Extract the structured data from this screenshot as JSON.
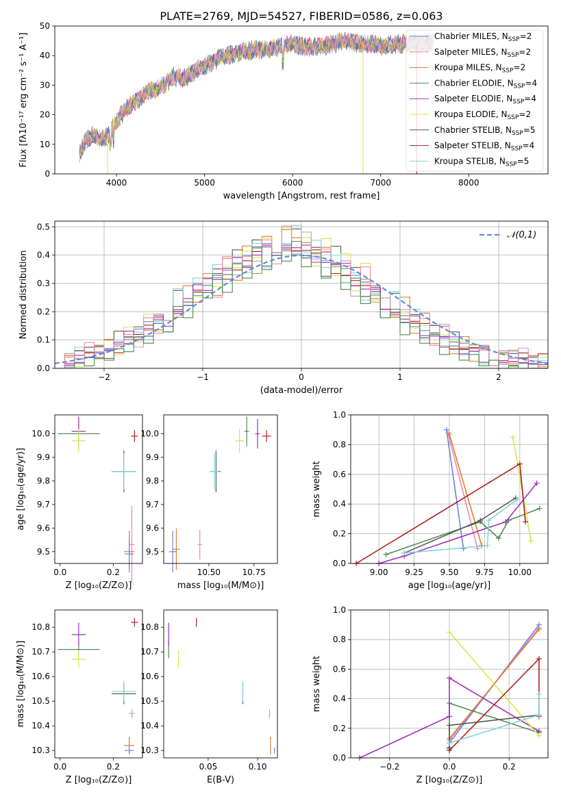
{
  "figure": {
    "title": "PLATE=2769, MJD=54527, FIBERID=0586, z=0.063"
  },
  "legend_entries": [
    {
      "label": "Chabrier MILES, N",
      "sub": "SSP",
      "tail": "=2",
      "color": "#6d7fe0"
    },
    {
      "label": "Salpeter MILES, N",
      "sub": "SSP",
      "tail": "=2",
      "color": "#e889b6"
    },
    {
      "label": "Kroupa MILES, N",
      "sub": "SSP",
      "tail": "=2",
      "color": "#e07b2a"
    },
    {
      "label": "Chabrier ELODIE, N",
      "sub": "SSP",
      "tail": "=4",
      "color": "#4d8a4d"
    },
    {
      "label": "Salpeter ELODIE, N",
      "sub": "SSP",
      "tail": "=4",
      "color": "#9c2fb5"
    },
    {
      "label": "Kroupa ELODIE, N",
      "sub": "SSP",
      "tail": "=2",
      "color": "#d4e84a"
    },
    {
      "label": "Chabrier STELIB, N",
      "sub": "SSP",
      "tail": "=5",
      "color": "#555555"
    },
    {
      "label": "Salpeter STELIB, N",
      "sub": "SSP",
      "tail": "=4",
      "color": "#b01c1c"
    },
    {
      "label": "Kroupa STELIB, N",
      "sub": "SSP",
      "tail": "=5",
      "color": "#7fd6e0"
    }
  ],
  "chart_data": [
    {
      "type": "line",
      "title": "PLATE=2769, MJD=54527, FIBERID=0586, z=0.063",
      "xlabel": "wavelength [Angstrom, rest frame]",
      "ylabel": "Flux [fλ10⁻¹⁷ erg cm⁻² s⁻¹ A⁻¹]",
      "xlim": [
        3300,
        8900
      ],
      "ylim": [
        0,
        50
      ],
      "xticks": [
        4000,
        5000,
        6000,
        7000,
        8000
      ],
      "yticks": [
        0,
        10,
        20,
        30,
        40,
        50
      ],
      "x": [
        3580,
        3650,
        3720,
        3800,
        3870,
        3950,
        4050,
        4150,
        4250,
        4350,
        4450,
        4550,
        4650,
        4750,
        4850,
        4950,
        5050,
        5150,
        5250,
        5400,
        5550,
        5700,
        5850,
        6000,
        6150,
        6300,
        6450,
        6600,
        6750,
        6900,
        7050,
        7200,
        7350,
        7500,
        7600
      ],
      "values": [
        7,
        11,
        13,
        12,
        12,
        15,
        20,
        23,
        25,
        28,
        29,
        30,
        33,
        32,
        34,
        36,
        37,
        39,
        40,
        41,
        42,
        42,
        43,
        44,
        43,
        43,
        44,
        45,
        44,
        44,
        43,
        44,
        44,
        44,
        45
      ],
      "legend_placement": "right"
    },
    {
      "type": "bar",
      "xlabel": "(data-model)/error",
      "ylabel": "Normed distribution",
      "xlim": [
        -2.5,
        2.5
      ],
      "ylim": [
        0,
        0.52
      ],
      "xticks": [
        -2,
        -1,
        0,
        1,
        2
      ],
      "yticks": [
        0.0,
        0.1,
        0.2,
        0.3,
        0.4,
        0.5
      ],
      "grid": true,
      "legend_placement": "top-right",
      "reference_curve": "𝒩(0,1)",
      "bin_edges": [
        -2.5,
        -2.4,
        -2.3,
        -2.2,
        -2.1,
        -2.0,
        -1.9,
        -1.8,
        -1.7,
        -1.6,
        -1.5,
        -1.4,
        -1.3,
        -1.2,
        -1.1,
        -1.0,
        -0.9,
        -0.8,
        -0.7,
        -0.6,
        -0.5,
        -0.4,
        -0.3,
        -0.2,
        -0.1,
        0.0,
        0.1,
        0.2,
        0.3,
        0.4,
        0.5,
        0.6,
        0.7,
        0.8,
        0.9,
        1.0,
        1.1,
        1.2,
        1.3,
        1.4,
        1.5,
        1.6,
        1.7,
        1.8,
        1.9,
        2.0,
        2.1,
        2.2,
        2.3,
        2.4,
        2.5
      ],
      "series": [
        {
          "values": [
            0.03,
            0.03,
            0.04,
            0.05,
            0.06,
            0.07,
            0.08,
            0.1,
            0.12,
            0.14,
            0.16,
            0.18,
            0.22,
            0.24,
            0.27,
            0.3,
            0.32,
            0.34,
            0.36,
            0.38,
            0.4,
            0.41,
            0.43,
            0.44,
            0.42,
            0.41,
            0.4,
            0.38,
            0.36,
            0.34,
            0.31,
            0.28,
            0.26,
            0.24,
            0.21,
            0.18,
            0.16,
            0.14,
            0.12,
            0.1,
            0.08,
            0.07,
            0.06,
            0.05,
            0.04,
            0.04,
            0.03,
            0.03,
            0.02,
            0.02
          ]
        },
        {
          "values": [
            0.02,
            0.04,
            0.03,
            0.06,
            0.05,
            0.08,
            0.06,
            0.12,
            0.1,
            0.16,
            0.13,
            0.2,
            0.18,
            0.26,
            0.24,
            0.31,
            0.27,
            0.37,
            0.33,
            0.42,
            0.36,
            0.46,
            0.4,
            0.49,
            0.43,
            0.45,
            0.38,
            0.44,
            0.34,
            0.38,
            0.28,
            0.34,
            0.24,
            0.28,
            0.18,
            0.22,
            0.13,
            0.17,
            0.1,
            0.13,
            0.07,
            0.1,
            0.05,
            0.07,
            0.04,
            0.05,
            0.03,
            0.04,
            0.02,
            0.02
          ]
        },
        {
          "values": [
            0.03,
            0.02,
            0.05,
            0.04,
            0.07,
            0.06,
            0.1,
            0.09,
            0.14,
            0.12,
            0.19,
            0.16,
            0.25,
            0.21,
            0.3,
            0.28,
            0.36,
            0.3,
            0.4,
            0.35,
            0.46,
            0.38,
            0.44,
            0.41,
            0.48,
            0.39,
            0.44,
            0.35,
            0.4,
            0.31,
            0.35,
            0.26,
            0.29,
            0.21,
            0.24,
            0.15,
            0.19,
            0.12,
            0.15,
            0.08,
            0.11,
            0.06,
            0.08,
            0.04,
            0.06,
            0.03,
            0.04,
            0.02,
            0.03,
            0.02
          ]
        }
      ]
    },
    {
      "type": "scatter",
      "xlabel": "Z [log₁₀(Z/Z⊙)]",
      "ylabel": "age  [log₁₀(age/yr)]",
      "xlim": [
        -0.02,
        0.31
      ],
      "ylim": [
        9.45,
        10.08
      ],
      "xticks": [
        0.0,
        0.2
      ],
      "yticks": [
        9.5,
        9.6,
        9.7,
        9.8,
        9.9,
        10.0
      ],
      "x": [
        0.07,
        0.07,
        0.07,
        0.24,
        0.24,
        0.28,
        0.27,
        0.26,
        0.26
      ],
      "values": [
        10.0,
        10.01,
        9.97,
        9.84,
        9.84,
        9.99,
        9.53,
        9.5,
        9.49
      ]
    },
    {
      "type": "scatter",
      "xlabel": "mass [log₁₀(M/M⊙)]",
      "xlim": [
        10.25,
        10.88
      ],
      "ylim": [
        9.45,
        10.08
      ],
      "xticks": [
        10.5,
        10.75
      ],
      "yticks": [
        9.5,
        9.6,
        9.7,
        9.8,
        9.9,
        10.0
      ],
      "x": [
        10.71,
        10.77,
        10.67,
        10.54,
        10.53,
        10.82,
        10.45,
        10.32,
        10.3
      ],
      "values": [
        10.01,
        10.0,
        9.97,
        9.84,
        9.84,
        9.99,
        9.53,
        9.51,
        9.5
      ]
    },
    {
      "type": "line",
      "xlabel": "age  [log₁₀(age/yr)]",
      "ylabel": "mass weight",
      "xlim": [
        8.8,
        10.2
      ],
      "ylim": [
        0,
        1
      ],
      "xticks": [
        9.0,
        9.25,
        9.5,
        9.75,
        10.0
      ],
      "yticks": [
        0.0,
        0.2,
        0.4,
        0.6,
        0.8,
        1.0
      ],
      "grid": true,
      "series": [
        {
          "x": [
            9.48,
            9.6
          ],
          "values": [
            0.9,
            0.1
          ]
        },
        {
          "x": [
            9.49,
            9.7
          ],
          "values": [
            0.88,
            0.1
          ]
        },
        {
          "x": [
            9.5,
            9.73
          ],
          "values": [
            0.87,
            0.12
          ]
        },
        {
          "x": [
            9.05,
            9.72,
            9.85,
            9.92,
            10.14
          ],
          "values": [
            0.06,
            0.28,
            0.17,
            0.29,
            0.37
          ]
        },
        {
          "x": [
            9.0,
            9.18,
            9.9,
            10.12
          ],
          "values": [
            0.0,
            0.05,
            0.28,
            0.54
          ]
        },
        {
          "x": [
            9.95,
            10.08
          ],
          "values": [
            0.85,
            0.15
          ]
        },
        {
          "x": [
            9.18,
            9.72,
            9.97
          ],
          "values": [
            0.07,
            0.29,
            0.44
          ]
        },
        {
          "x": [
            8.84,
            10.0,
            10.04
          ],
          "values": [
            0.0,
            0.67,
            0.28
          ]
        },
        {
          "x": [
            9.18,
            9.77,
            9.78,
            9.98
          ],
          "values": [
            0.07,
            0.12,
            0.29,
            0.43
          ]
        }
      ]
    },
    {
      "type": "scatter",
      "xlabel": "Z [log₁₀(Z/Z⊙)]",
      "ylabel": "mass [log₁₀(M/M⊙)]",
      "xlim": [
        -0.02,
        0.31
      ],
      "ylim": [
        10.27,
        10.87
      ],
      "xticks": [
        0.0,
        0.2
      ],
      "yticks": [
        10.3,
        10.4,
        10.5,
        10.6,
        10.7,
        10.8
      ],
      "x": [
        0.07,
        0.07,
        0.07,
        0.24,
        0.24,
        0.28,
        0.27,
        0.26,
        0.26
      ],
      "values": [
        10.71,
        10.77,
        10.67,
        10.53,
        10.54,
        10.82,
        10.45,
        10.32,
        10.3
      ]
    },
    {
      "type": "scatter",
      "xlabel": "E(B-V)",
      "xlim": [
        0.005,
        0.12
      ],
      "ylim": [
        10.27,
        10.87
      ],
      "xticks": [
        0.05,
        0.1
      ],
      "yticks": [
        10.3,
        10.4,
        10.5,
        10.6,
        10.7,
        10.8
      ],
      "x": [
        0.01,
        0.01,
        0.02,
        0.085,
        0.085,
        0.038,
        0.112,
        0.113,
        0.117
      ],
      "values": [
        10.71,
        10.77,
        10.67,
        10.53,
        10.54,
        10.82,
        10.45,
        10.32,
        10.3
      ]
    },
    {
      "type": "line",
      "xlabel": "Z [log₁₀(Z/Z⊙)]",
      "ylabel": "mass weight",
      "xlim": [
        -0.33,
        0.33
      ],
      "ylim": [
        0,
        1
      ],
      "xticks": [
        -0.2,
        0.0,
        0.2
      ],
      "yticks": [
        0.0,
        0.2,
        0.4,
        0.6,
        0.8,
        1.0
      ],
      "grid": true,
      "series": [
        {
          "x": [
            0.0,
            0.3
          ],
          "values": [
            0.1,
            0.9
          ]
        },
        {
          "x": [
            0.0,
            0.3
          ],
          "values": [
            0.12,
            0.88
          ]
        },
        {
          "x": [
            0.0,
            0.3
          ],
          "values": [
            0.13,
            0.87
          ]
        },
        {
          "x": [
            0.0,
            0.0,
            0.3
          ],
          "values": [
            0.06,
            0.37,
            0.17
          ]
        },
        {
          "x": [
            -0.3,
            0.0,
            0.0,
            0.3
          ],
          "values": [
            0.0,
            0.28,
            0.54,
            0.18
          ]
        },
        {
          "x": [
            0.0,
            0.3
          ],
          "values": [
            0.85,
            0.15
          ]
        },
        {
          "x": [
            0.0,
            0.0,
            0.3
          ],
          "values": [
            0.07,
            0.22,
            0.29
          ]
        },
        {
          "x": [
            0.0,
            0.3,
            0.3
          ],
          "values": [
            0.05,
            0.67,
            0.28
          ]
        },
        {
          "x": [
            0.0,
            0.3,
            0.3
          ],
          "values": [
            0.1,
            0.29,
            0.43
          ]
        }
      ]
    }
  ]
}
